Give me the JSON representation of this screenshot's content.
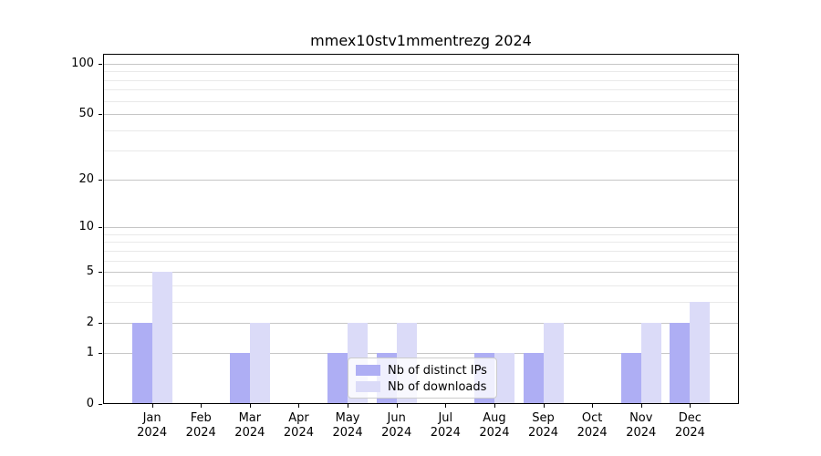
{
  "chart_data": {
    "type": "bar",
    "title": "mmex10stv1mmentrezg 2024",
    "categories": [
      "Jan",
      "Feb",
      "Mar",
      "Apr",
      "May",
      "Jun",
      "Jul",
      "Aug",
      "Sep",
      "Oct",
      "Nov",
      "Dec"
    ],
    "category_year": "2024",
    "series": [
      {
        "name": "Nb of distinct IPs",
        "color": "#aeaef4",
        "values": [
          2,
          0,
          1,
          0,
          1,
          1,
          0,
          1,
          1,
          0,
          1,
          2
        ]
      },
      {
        "name": "Nb of downloads",
        "color": "#dbdbf8",
        "values": [
          5,
          0,
          2,
          0,
          2,
          2,
          0,
          1,
          2,
          0,
          2,
          3
        ]
      }
    ],
    "xlabel": "",
    "ylabel": "",
    "y_ticks": [
      0,
      1,
      2,
      5,
      10,
      20,
      50,
      100
    ],
    "y_minor_ticks": [
      3,
      4,
      6,
      7,
      8,
      9,
      30,
      40,
      60,
      70,
      80,
      90
    ],
    "scale": "log1p",
    "ylim": [
      0,
      100
    ],
    "grid": true,
    "legend_position": "lower center",
    "colors": {
      "grid_major": "#c6c6c6",
      "grid_minor": "#e9e9e9",
      "axis": "#000000",
      "legend_border": "#cccccc",
      "background": "#ffffff"
    }
  }
}
